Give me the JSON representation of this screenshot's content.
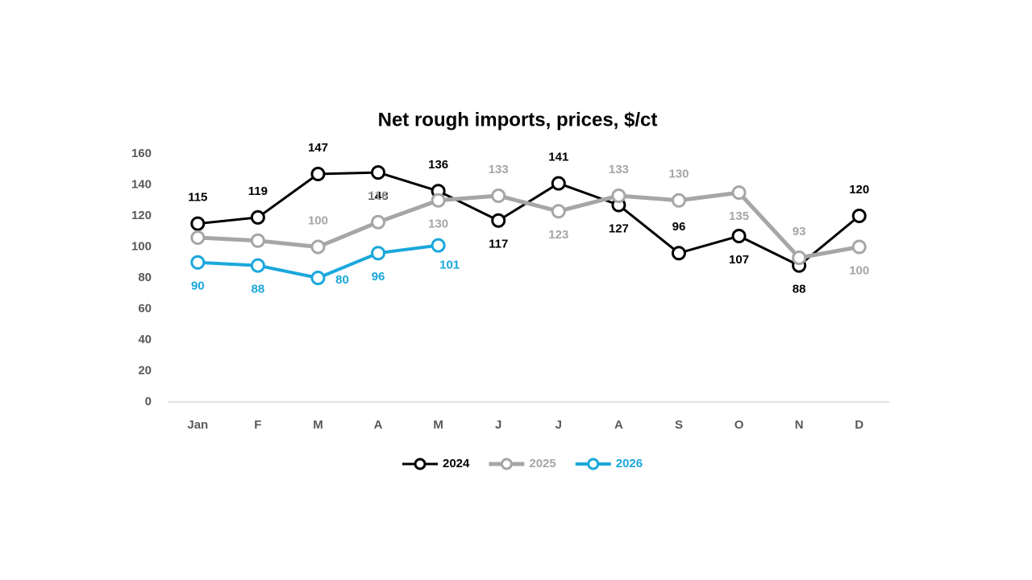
{
  "chart_data": {
    "type": "line",
    "title": "Net rough imports, prices, $/ct",
    "categories": [
      "Jan",
      "F",
      "M",
      "A",
      "M",
      "J",
      "J",
      "A",
      "S",
      "O",
      "N",
      "D"
    ],
    "series": [
      {
        "name": "2024",
        "color": "#000000",
        "values": [
          115,
          119,
          147,
          148,
          136,
          117,
          141,
          127,
          96,
          107,
          88,
          120
        ]
      },
      {
        "name": "2025",
        "color": "#a6a6a6",
        "values": [
          106,
          104,
          100,
          116,
          130,
          133,
          123,
          133,
          130,
          135,
          93,
          100
        ],
        "value_labels": [
          null,
          null,
          "100",
          "116",
          "130",
          "133",
          "123",
          "133",
          "130",
          "135",
          "93",
          "100"
        ]
      },
      {
        "name": "2026",
        "color": "#1aa7dc",
        "values": [
          90,
          88,
          80,
          96,
          101,
          null,
          null,
          null,
          null,
          null,
          null,
          null
        ]
      }
    ],
    "ylim": [
      0,
      160
    ],
    "yticks": [
      0,
      20,
      40,
      60,
      80,
      100,
      120,
      140,
      160
    ],
    "grid": false,
    "legend": "bottom"
  }
}
